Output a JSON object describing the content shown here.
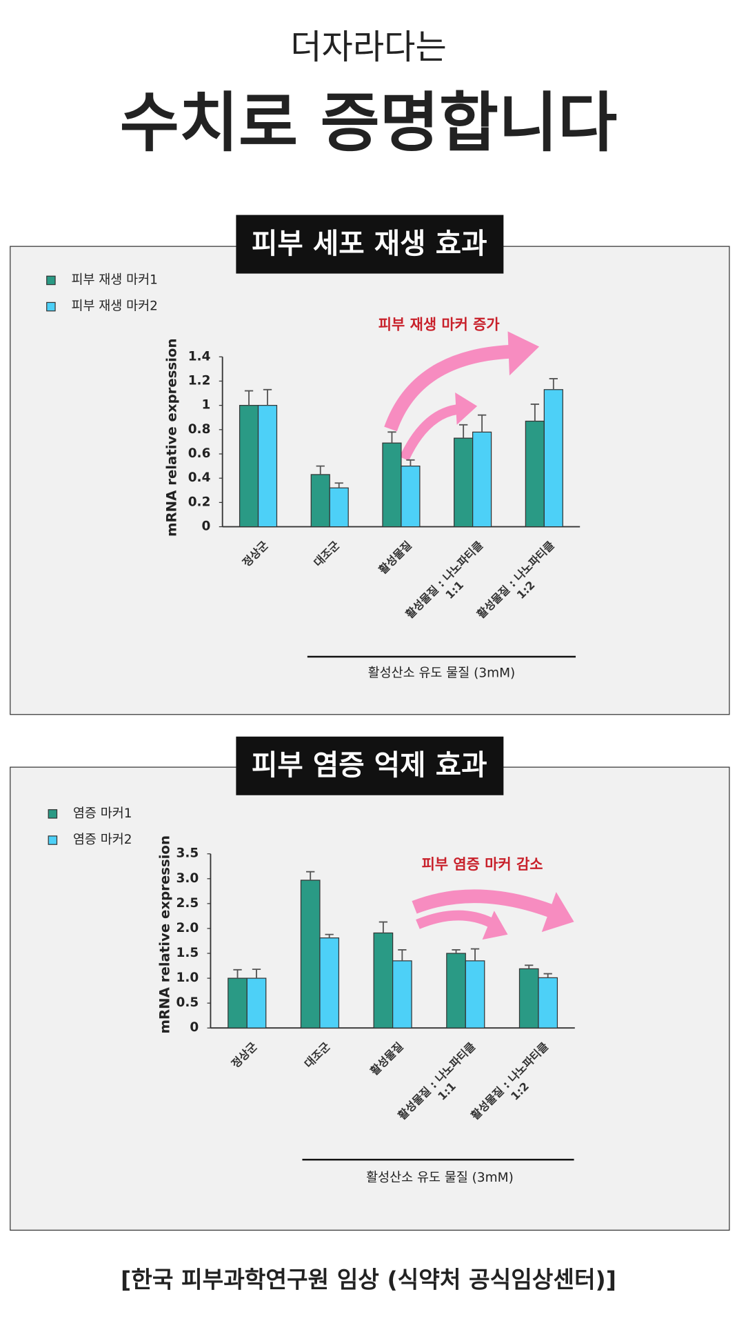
{
  "header": {
    "subtitle": "더자라다는",
    "title": "수치로 증명합니다"
  },
  "footer": "[한국 피부과학연구원 임상 (식약처 공식임상센터)]",
  "chart_data": [
    {
      "type": "bar",
      "title": "피부 세포 재생 효과",
      "y_label": "mRNA relative expression",
      "annotation": "피부 재생 마커 증가",
      "bracket_label": "활성산소 유도 물질 (3mM)",
      "categories": [
        "정상군",
        "대조군",
        "활성물질",
        "활성물질 : 나노파티클\n1:1",
        "활성물질 : 나노파티클\n1:2"
      ],
      "series": [
        {
          "name": "피부 재생 마커1",
          "color": "#2a9a85",
          "values": [
            1.0,
            0.43,
            0.69,
            0.73,
            0.87
          ],
          "errors": [
            0.12,
            0.07,
            0.09,
            0.11,
            0.14
          ]
        },
        {
          "name": "피부 재생 마커2",
          "color": "#4dd0f7",
          "values": [
            1.0,
            0.32,
            0.5,
            0.78,
            1.13
          ],
          "errors": [
            0.13,
            0.04,
            0.05,
            0.14,
            0.09
          ]
        }
      ],
      "ylim": [
        0,
        1.4
      ],
      "yticks": [
        0,
        0.2,
        0.4,
        0.6,
        0.8,
        1,
        1.2,
        1.4
      ],
      "legend": "upper left"
    },
    {
      "type": "bar",
      "title": "피부 염증 억제 효과",
      "y_label": "mRNA relative expression",
      "annotation": "피부 염증 마커 감소",
      "bracket_label": "활성산소 유도 물질 (3mM)",
      "categories": [
        "정상군",
        "대조군",
        "활성물질",
        "활성물질 : 나노파티클\n1:1",
        "활성물질 : 나노파티클\n1:2"
      ],
      "series": [
        {
          "name": "염증 마커1",
          "color": "#2a9a85",
          "values": [
            1.0,
            2.97,
            1.91,
            1.5,
            1.19
          ],
          "errors": [
            0.17,
            0.17,
            0.22,
            0.07,
            0.07
          ]
        },
        {
          "name": "염증 마커2",
          "color": "#4dd0f7",
          "values": [
            1.0,
            1.81,
            1.35,
            1.35,
            1.01
          ],
          "errors": [
            0.18,
            0.07,
            0.22,
            0.24,
            0.08
          ]
        }
      ],
      "ylim": [
        0,
        3.5
      ],
      "yticks": [
        0,
        0.5,
        {
          "value": 1,
          "label": "1.0"
        },
        1.5,
        {
          "value": 2,
          "label": "2.0"
        },
        2.5,
        {
          "value": 3,
          "label": "3.0"
        },
        3.5
      ],
      "legend": "upper left"
    }
  ]
}
